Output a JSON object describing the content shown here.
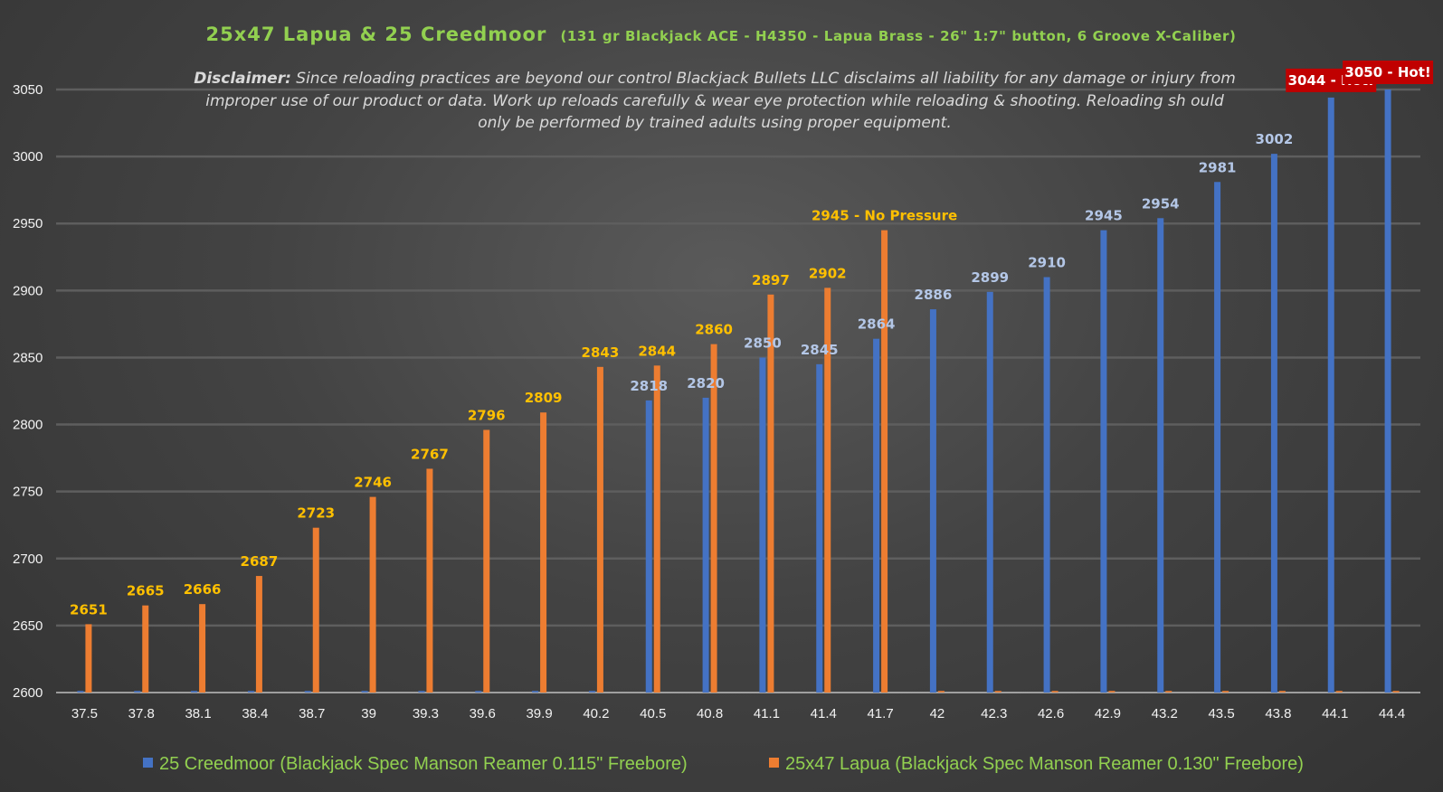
{
  "chart_data": {
    "type": "bar",
    "title": "25x47 Lapua & 25 Creedmoor",
    "subtitle": "(131 gr Blackjack ACE - H4350 - Lapua Brass - 26\" 1:7\" button, 6 Groove X-Caliber)",
    "disclaimer": {
      "label": "Disclaimer:",
      "lines": [
        " Since reloading practices are beyond our control Blackjack Bullets LLC disclaims all liability for any damage or injury from",
        "improper use of our product or data. Work up reloads carefully & wear eye protection while reloading & shooting. Reloading sh ould",
        "only be performed by trained adults using proper equipment."
      ]
    },
    "xlabel": "",
    "ylabel": "",
    "ylim": [
      2600,
      3050
    ],
    "yticks": [
      2600,
      2650,
      2700,
      2750,
      2800,
      2850,
      2900,
      2950,
      3000,
      3050
    ],
    "grid": true,
    "legend_position": "bottom",
    "categories": [
      "37.5",
      "37.8",
      "38.1",
      "38.4",
      "38.7",
      "39",
      "39.3",
      "39.6",
      "39.9",
      "40.2",
      "40.5",
      "40.8",
      "41.1",
      "41.4",
      "41.7",
      "42",
      "42.3",
      "42.6",
      "42.9",
      "43.2",
      "43.5",
      "43.8",
      "44.1",
      "44.4"
    ],
    "series": [
      {
        "name": "25 Creedmoor (Blackjack Spec Manson Reamer 0.115\" Freebore)",
        "color": "#4472c4",
        "label_color": "#b4c7e7",
        "values": [
          null,
          null,
          null,
          null,
          null,
          null,
          null,
          null,
          null,
          null,
          2818,
          2820,
          2850,
          2845,
          2864,
          2886,
          2899,
          2910,
          2945,
          2954,
          2981,
          3002,
          3044,
          3050
        ],
        "labels": [
          "",
          "",
          "",
          "",
          "",
          "",
          "",
          "",
          "",
          "",
          "2818",
          "2820",
          "2850",
          "2845",
          "2864",
          "2886",
          "2899",
          "2910",
          "2945",
          "2954",
          "2981",
          "3002",
          "3044 - Hot!",
          "3050 - Hot!"
        ]
      },
      {
        "name": "25x47 Lapua (Blackjack Spec Manson Reamer 0.130\" Freebore)",
        "color": "#ed7d31",
        "label_color": "#ffc000",
        "values": [
          2651,
          2665,
          2666,
          2687,
          2723,
          2746,
          2767,
          2796,
          2809,
          2843,
          2844,
          2860,
          2897,
          2902,
          2945,
          null,
          null,
          null,
          null,
          null,
          null,
          null,
          null,
          null
        ],
        "labels": [
          "2651",
          "2665",
          "2666",
          "2687",
          "2723",
          "2746",
          "2767",
          "2796",
          "2809",
          "2843",
          "2844",
          "2860",
          "2897",
          "2902",
          "2945 - No Pressure",
          "",
          "",
          "",
          "",
          "",
          "",
          "",
          "",
          ""
        ]
      }
    ],
    "hot_label_color": "#c00000"
  }
}
